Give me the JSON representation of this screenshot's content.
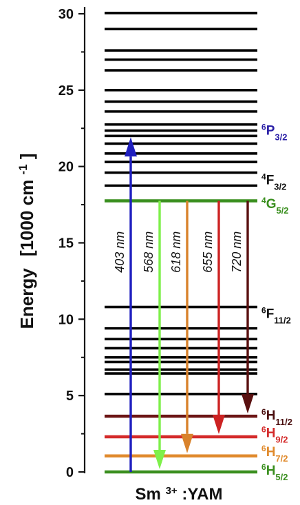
{
  "chart_data": {
    "type": "energy-level-diagram",
    "ylabel_main": "Energy",
    "ylabel_units": "[1000 cm",
    "ylabel_exp": "-1",
    "ylabel_close": "]",
    "xlabel_main": "Sm",
    "xlabel_sup": "3+",
    "xlabel_rest": ":YAM",
    "ylim": [
      0,
      30.5
    ],
    "yticks": [
      0,
      5,
      10,
      15,
      20,
      25,
      30
    ],
    "ytick_labels": [
      "0",
      "5",
      "10",
      "15",
      "20",
      "25",
      "30"
    ],
    "minor_ticks": [
      2.5,
      7.5,
      12.5,
      17.5,
      22.5,
      27.5
    ],
    "levels": [
      {
        "energy": 0.0,
        "color": "#3a8f1f"
      },
      {
        "energy": 1.05,
        "color": "#e08a2c"
      },
      {
        "energy": 2.3,
        "color": "#d42a2a"
      },
      {
        "energy": 3.65,
        "color": "#6b1414"
      },
      {
        "energy": 5.1,
        "color": "#000000"
      },
      {
        "energy": 6.45,
        "color": "#000000"
      },
      {
        "energy": 6.7,
        "color": "#000000"
      },
      {
        "energy": 7.2,
        "color": "#000000"
      },
      {
        "energy": 7.5,
        "color": "#000000"
      },
      {
        "energy": 8.1,
        "color": "#000000"
      },
      {
        "energy": 8.7,
        "color": "#000000"
      },
      {
        "energy": 9.4,
        "color": "#000000"
      },
      {
        "energy": 10.8,
        "color": "#000000"
      },
      {
        "energy": 17.75,
        "color": "#3a8f1f"
      },
      {
        "energy": 18.75,
        "color": "#000000"
      },
      {
        "energy": 19.6,
        "color": "#000000"
      },
      {
        "energy": 20.3,
        "color": "#000000"
      },
      {
        "energy": 20.85,
        "color": "#000000"
      },
      {
        "energy": 21.5,
        "color": "#000000"
      },
      {
        "energy": 22.0,
        "color": "#000000"
      },
      {
        "energy": 22.35,
        "color": "#000000"
      },
      {
        "energy": 22.75,
        "color": "#000000"
      },
      {
        "energy": 23.6,
        "color": "#000000"
      },
      {
        "energy": 24.25,
        "color": "#000000"
      },
      {
        "energy": 25.0,
        "color": "#000000"
      },
      {
        "energy": 26.3,
        "color": "#000000"
      },
      {
        "energy": 27.0,
        "color": "#000000"
      },
      {
        "energy": 27.6,
        "color": "#000000"
      },
      {
        "energy": 29.0,
        "color": "#000000"
      },
      {
        "energy": 30.05,
        "color": "#000000"
      }
    ],
    "transitions": [
      {
        "label": "403 nm",
        "from": 0.0,
        "to": 22.1,
        "direction": "up",
        "color": "#1f1fbf"
      },
      {
        "label": "568 nm",
        "from": 17.75,
        "to": 0.0,
        "direction": "down",
        "color": "#7ef04a"
      },
      {
        "label": "618 nm",
        "from": 17.75,
        "to": 1.05,
        "direction": "down",
        "color": "#d9822b"
      },
      {
        "label": "655 nm",
        "from": 17.75,
        "to": 2.3,
        "direction": "down",
        "color": "#cc2222"
      },
      {
        "label": "720 nm",
        "from": 17.75,
        "to": 3.65,
        "direction": "down",
        "color": "#5a1010"
      }
    ],
    "terms": [
      {
        "energy": 22.35,
        "sup": "6",
        "main": "P",
        "sub": "3/2",
        "color": "#2a1fa6"
      },
      {
        "energy": 19.1,
        "sup": "4",
        "main": "F",
        "sub": "3/2",
        "color": "#111111"
      },
      {
        "energy": 17.55,
        "sup": "4",
        "main": "G",
        "sub": "5/2",
        "color": "#3a8f1f"
      },
      {
        "energy": 10.35,
        "sup": "6",
        "main": "F",
        "sub": "11/2",
        "color": "#111111"
      },
      {
        "energy": 3.7,
        "sup": "6",
        "main": "H",
        "sub": "11/2",
        "color": "#4a0e0e"
      },
      {
        "energy": 2.55,
        "sup": "6",
        "main": "H",
        "sub": "9/2",
        "color": "#d42a2a"
      },
      {
        "energy": 1.3,
        "sup": "6",
        "main": "H",
        "sub": "7/2",
        "color": "#e08a2c"
      },
      {
        "energy": 0.1,
        "sup": "6",
        "main": "H",
        "sub": "5/2",
        "color": "#3a8f1f"
      }
    ]
  }
}
